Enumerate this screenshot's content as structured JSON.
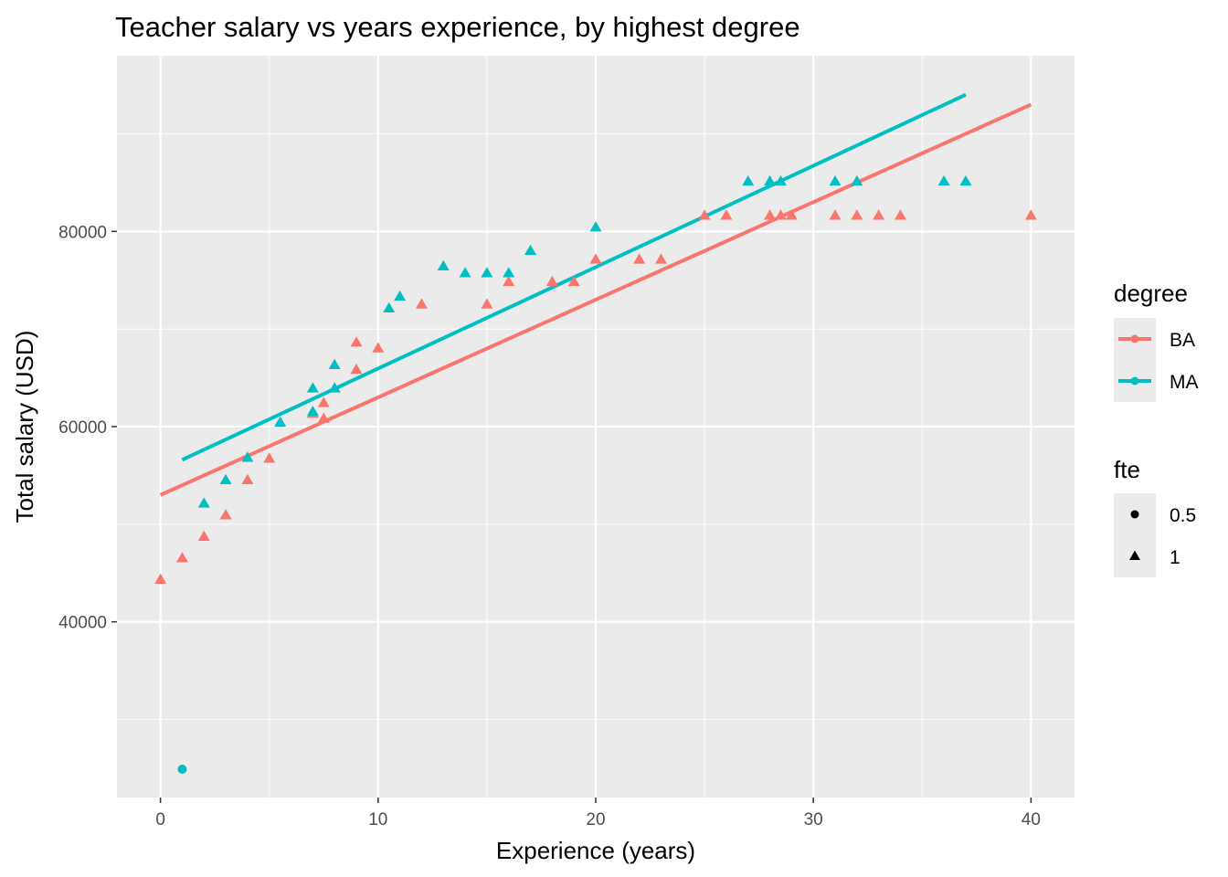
{
  "chart_data": {
    "type": "scatter",
    "title": "Teacher salary vs years experience, by highest degree",
    "xlabel": "Experience (years)",
    "ylabel": "Total salary (USD)",
    "xlim": [
      -2,
      42
    ],
    "ylim": [
      22000,
      98000
    ],
    "x_ticks": [
      0,
      10,
      20,
      30,
      40
    ],
    "y_ticks": [
      40000,
      60000,
      80000
    ],
    "x_minor": [
      5,
      15,
      25,
      35
    ],
    "y_minor": [
      30000,
      50000,
      70000,
      90000
    ],
    "grid": true,
    "legend_position": "right",
    "legends": [
      {
        "title": "degree",
        "entries": [
          {
            "label": "BA",
            "color": "#F8766D"
          },
          {
            "label": "MA",
            "color": "#00BFC4"
          }
        ]
      },
      {
        "title": "fte",
        "entries": [
          {
            "label": "0.5",
            "shape": "circle"
          },
          {
            "label": "1",
            "shape": "triangle"
          }
        ]
      }
    ],
    "series": [
      {
        "name": "BA",
        "color": "#F8766D",
        "points": [
          {
            "x": 0,
            "y": 44300,
            "fte": "1"
          },
          {
            "x": 1,
            "y": 46500,
            "fte": "1"
          },
          {
            "x": 2,
            "y": 48700,
            "fte": "1"
          },
          {
            "x": 3,
            "y": 50900,
            "fte": "1"
          },
          {
            "x": 4,
            "y": 54500,
            "fte": "1"
          },
          {
            "x": 5,
            "y": 56700,
            "fte": "1"
          },
          {
            "x": 7,
            "y": 61300,
            "fte": "1"
          },
          {
            "x": 7.5,
            "y": 60800,
            "fte": "1"
          },
          {
            "x": 7.5,
            "y": 62400,
            "fte": "1"
          },
          {
            "x": 9,
            "y": 65800,
            "fte": "1"
          },
          {
            "x": 9,
            "y": 68600,
            "fte": "1"
          },
          {
            "x": 10,
            "y": 68000,
            "fte": "1"
          },
          {
            "x": 12,
            "y": 72500,
            "fte": "1"
          },
          {
            "x": 15,
            "y": 72500,
            "fte": "1"
          },
          {
            "x": 16,
            "y": 74800,
            "fte": "1"
          },
          {
            "x": 18,
            "y": 74800,
            "fte": "1"
          },
          {
            "x": 19,
            "y": 74800,
            "fte": "1"
          },
          {
            "x": 20,
            "y": 77100,
            "fte": "1"
          },
          {
            "x": 22,
            "y": 77100,
            "fte": "1"
          },
          {
            "x": 23,
            "y": 77100,
            "fte": "1"
          },
          {
            "x": 25,
            "y": 81600,
            "fte": "1"
          },
          {
            "x": 26,
            "y": 81600,
            "fte": "1"
          },
          {
            "x": 28,
            "y": 81600,
            "fte": "1"
          },
          {
            "x": 28.5,
            "y": 81600,
            "fte": "1"
          },
          {
            "x": 29,
            "y": 81600,
            "fte": "1"
          },
          {
            "x": 31,
            "y": 81600,
            "fte": "1"
          },
          {
            "x": 32,
            "y": 81600,
            "fte": "1"
          },
          {
            "x": 33,
            "y": 81600,
            "fte": "1"
          },
          {
            "x": 34,
            "y": 81600,
            "fte": "1"
          },
          {
            "x": 40,
            "y": 81600,
            "fte": "1"
          }
        ],
        "fit": [
          {
            "x": 0,
            "y": 53000
          },
          {
            "x": 40,
            "y": 93000
          }
        ]
      },
      {
        "name": "MA",
        "color": "#00BFC4",
        "points": [
          {
            "x": 1,
            "y": 24900,
            "fte": "0.5"
          },
          {
            "x": 2,
            "y": 52100,
            "fte": "1"
          },
          {
            "x": 3,
            "y": 54500,
            "fte": "1"
          },
          {
            "x": 4,
            "y": 56800,
            "fte": "1"
          },
          {
            "x": 5.5,
            "y": 60400,
            "fte": "1"
          },
          {
            "x": 7,
            "y": 61500,
            "fte": "1"
          },
          {
            "x": 7,
            "y": 63900,
            "fte": "1"
          },
          {
            "x": 8,
            "y": 63900,
            "fte": "1"
          },
          {
            "x": 8,
            "y": 66300,
            "fte": "1"
          },
          {
            "x": 10.5,
            "y": 72100,
            "fte": "1"
          },
          {
            "x": 11,
            "y": 73300,
            "fte": "1"
          },
          {
            "x": 13,
            "y": 76400,
            "fte": "1"
          },
          {
            "x": 14,
            "y": 75700,
            "fte": "1"
          },
          {
            "x": 15,
            "y": 75700,
            "fte": "1"
          },
          {
            "x": 16,
            "y": 75700,
            "fte": "1"
          },
          {
            "x": 17,
            "y": 78000,
            "fte": "1"
          },
          {
            "x": 20,
            "y": 80400,
            "fte": "1"
          },
          {
            "x": 27,
            "y": 85100,
            "fte": "1"
          },
          {
            "x": 28,
            "y": 85100,
            "fte": "1"
          },
          {
            "x": 28.5,
            "y": 85100,
            "fte": "1"
          },
          {
            "x": 31,
            "y": 85100,
            "fte": "1"
          },
          {
            "x": 32,
            "y": 85100,
            "fte": "1"
          },
          {
            "x": 36,
            "y": 85100,
            "fte": "1"
          },
          {
            "x": 37,
            "y": 85100,
            "fte": "1"
          }
        ],
        "fit": [
          {
            "x": 1,
            "y": 56600
          },
          {
            "x": 37,
            "y": 94000
          }
        ]
      }
    ]
  }
}
